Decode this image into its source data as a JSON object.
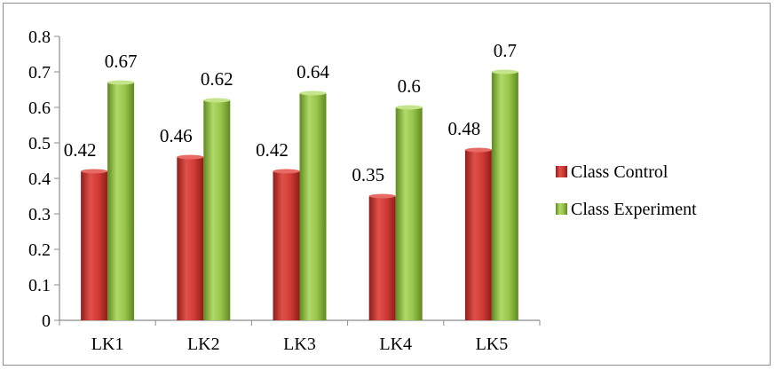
{
  "chart_data": {
    "type": "bar",
    "categories": [
      "LK1",
      "LK2",
      "LK3",
      "LK4",
      "LK5"
    ],
    "series": [
      {
        "name": "Class Control",
        "values": [
          0.42,
          0.46,
          0.42,
          0.35,
          0.48
        ],
        "color": "#c0302b"
      },
      {
        "name": "Class Experiment",
        "values": [
          0.67,
          0.62,
          0.64,
          0.6,
          0.7
        ],
        "color": "#8dbb3c"
      }
    ],
    "data_labels": [
      [
        "0.42",
        "0.46",
        "0.42",
        "0.35",
        "0.48"
      ],
      [
        "0.67",
        "0.62",
        "0.64",
        "0.6",
        "0.7"
      ]
    ],
    "y_ticks": [
      "0",
      "0.1",
      "0.2",
      "0.3",
      "0.4",
      "0.5",
      "0.6",
      "0.7",
      "0.8"
    ],
    "ylim": [
      0,
      0.8
    ],
    "title": "",
    "xlabel": "",
    "ylabel": "",
    "grid": false,
    "legend_position": "right"
  }
}
